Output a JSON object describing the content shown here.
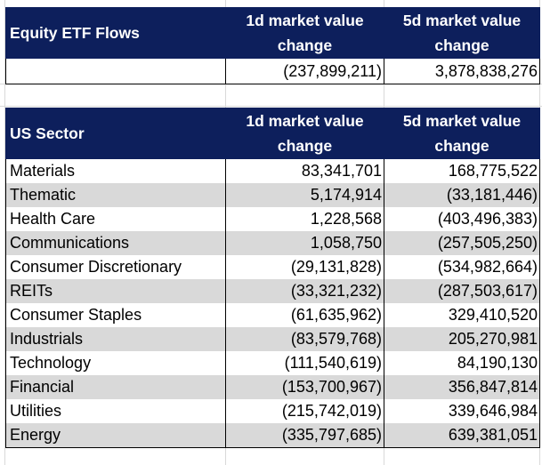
{
  "equity": {
    "title": "Equity ETF Flows",
    "col1": [
      "1d market value",
      "change"
    ],
    "col2": [
      "5d market value",
      "change"
    ],
    "rows": [
      {
        "name": "",
        "d1": "(237,899,211)",
        "d5": "3,878,838,276"
      }
    ]
  },
  "sector": {
    "title": "US Sector",
    "col1": [
      "1d market value",
      "change"
    ],
    "col2": [
      "5d market value",
      "change"
    ],
    "rows": [
      {
        "name": "Materials",
        "d1": "83,341,701",
        "d5": "168,775,522"
      },
      {
        "name": "Thematic",
        "d1": "5,174,914",
        "d5": "(33,181,446)"
      },
      {
        "name": "Health Care",
        "d1": "1,228,568",
        "d5": "(403,496,383)"
      },
      {
        "name": "Communications",
        "d1": "1,058,750",
        "d5": "(257,505,250)"
      },
      {
        "name": "Consumer Discretionary",
        "d1": "(29,131,828)",
        "d5": "(534,982,664)"
      },
      {
        "name": "REITs",
        "d1": "(33,321,232)",
        "d5": "(287,503,617)"
      },
      {
        "name": "Consumer Staples",
        "d1": "(61,635,962)",
        "d5": "329,410,520"
      },
      {
        "name": "Industrials",
        "d1": "(83,579,768)",
        "d5": "205,270,981"
      },
      {
        "name": "Technology",
        "d1": "(111,540,619)",
        "d5": "84,190,130"
      },
      {
        "name": "Financial",
        "d1": "(153,700,967)",
        "d5": "356,847,814"
      },
      {
        "name": "Utilities",
        "d1": "(215,742,019)",
        "d5": "339,646,984"
      },
      {
        "name": "Energy",
        "d1": "(335,797,685)",
        "d5": "639,381,051"
      }
    ]
  }
}
